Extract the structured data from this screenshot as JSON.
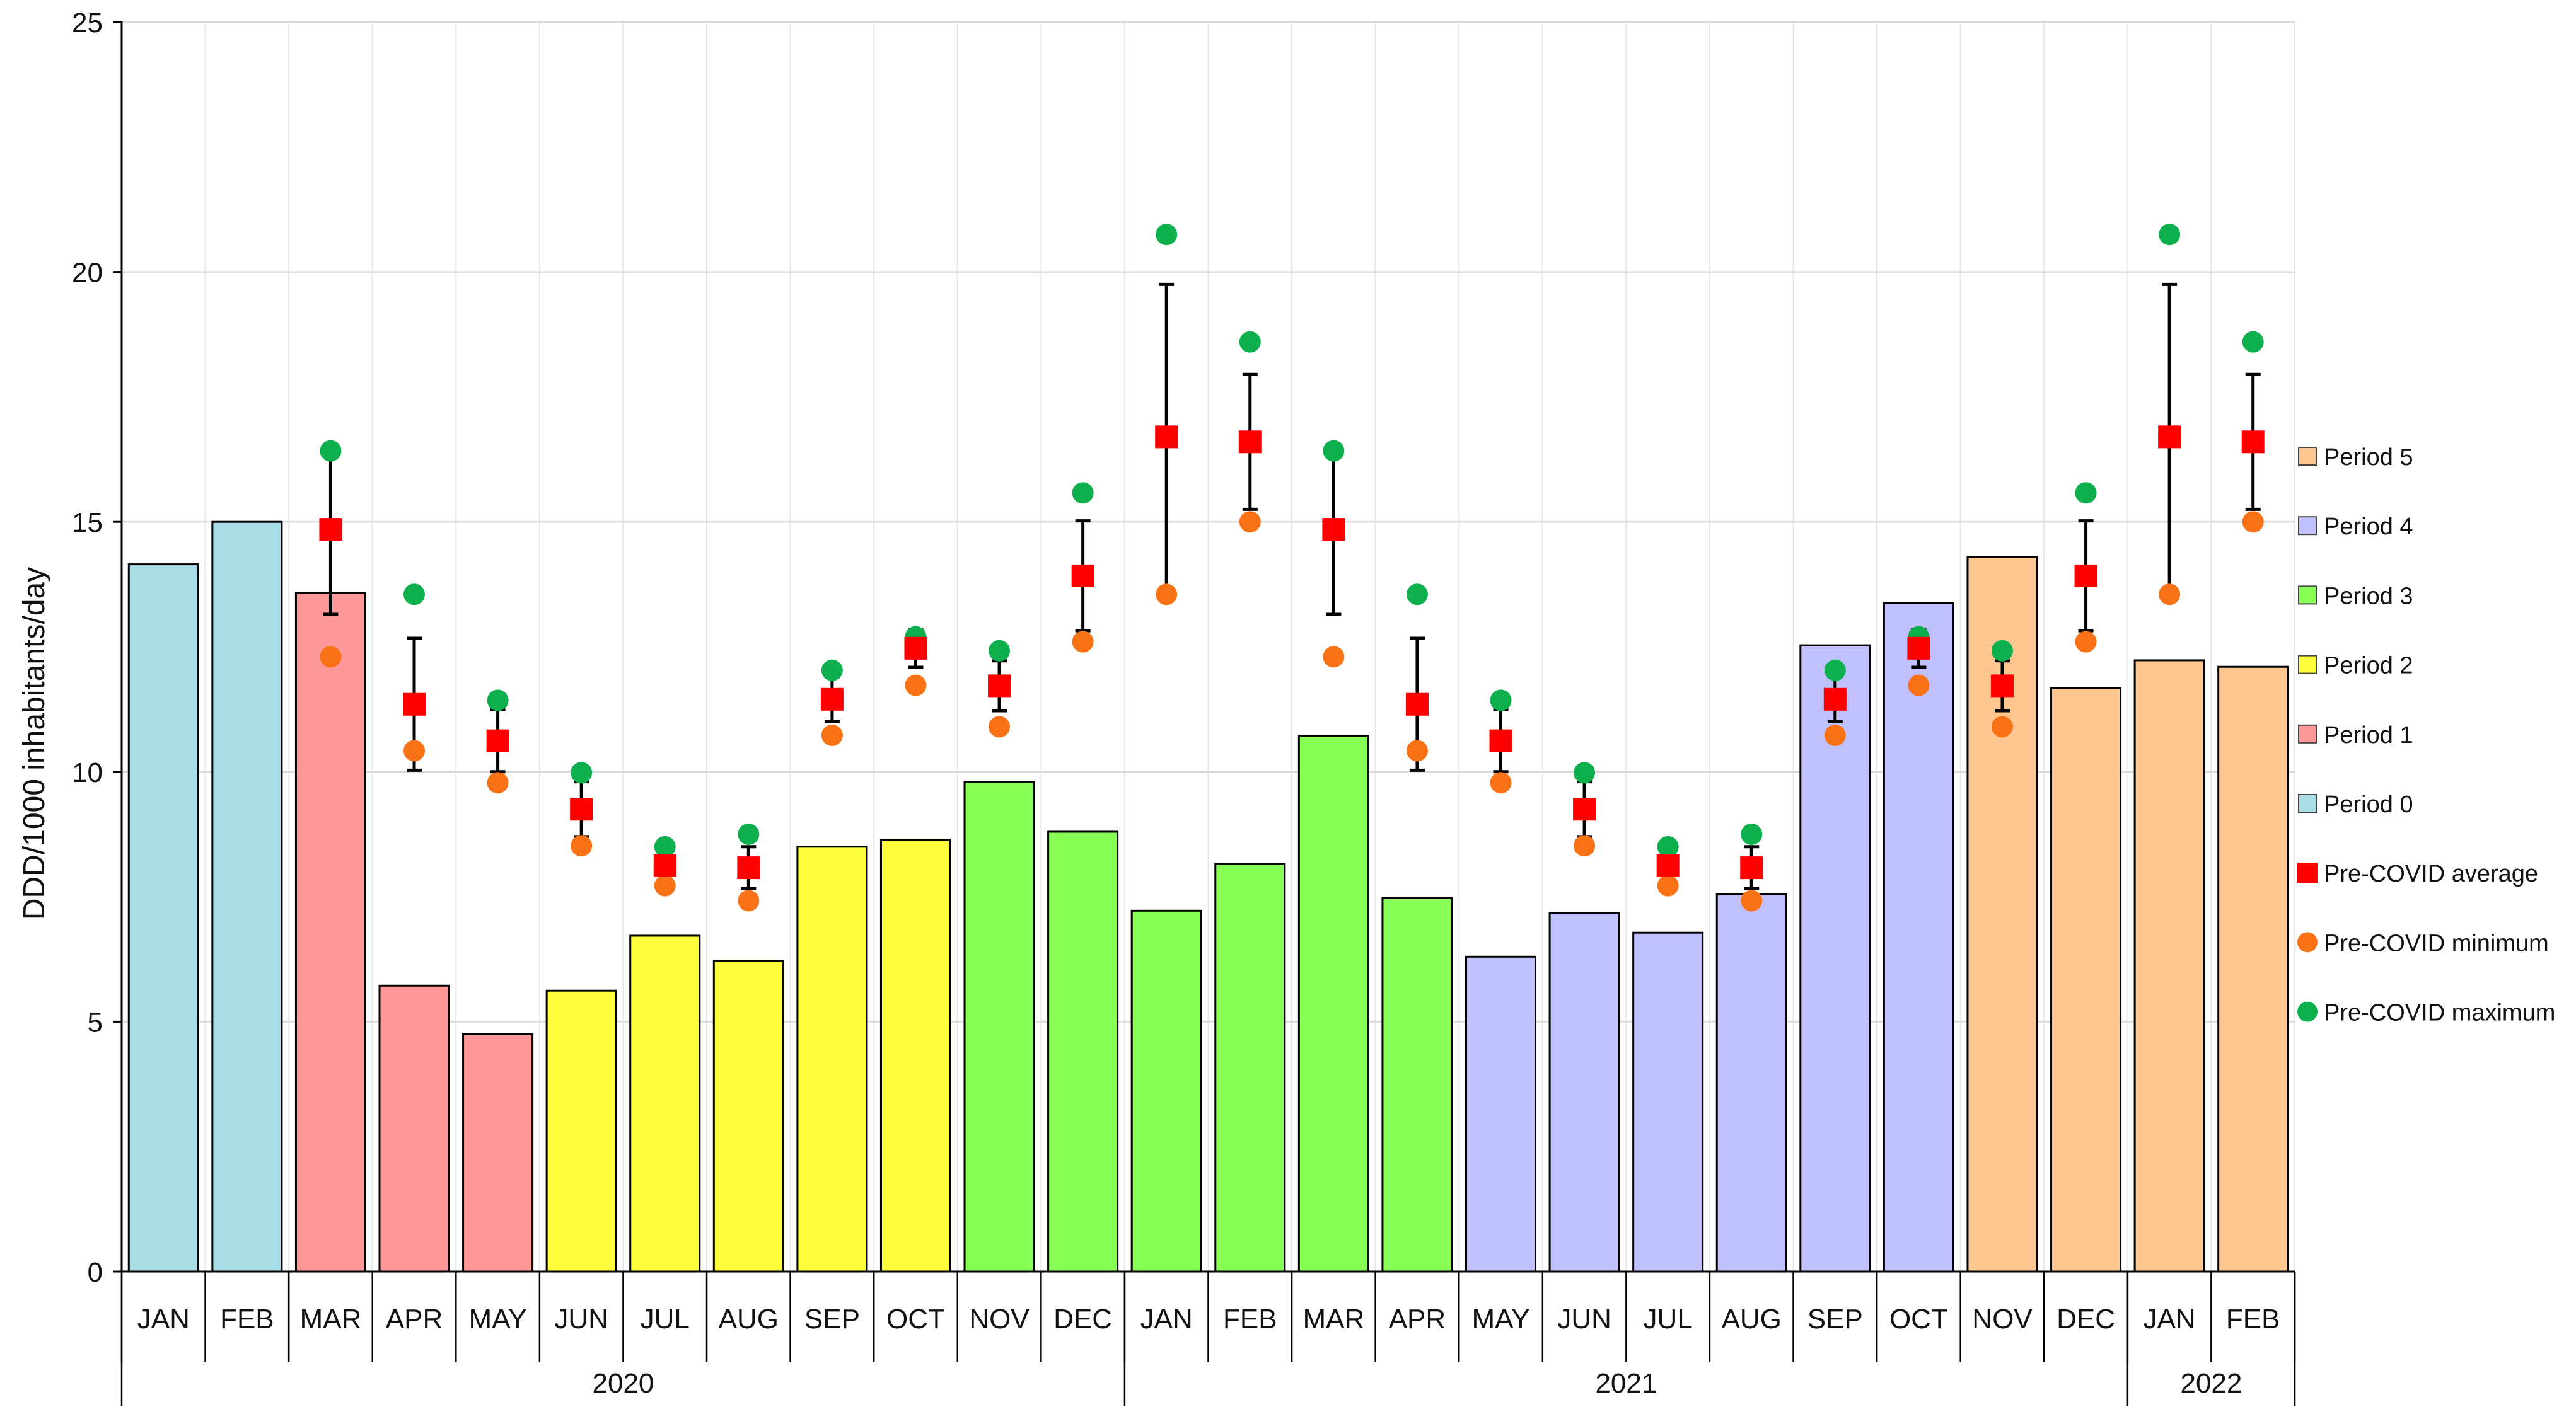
{
  "chart_data": {
    "type": "bar",
    "title": "",
    "ylabel": "DDD/1000 inhabitants/day",
    "xlabel": "",
    "ylim": [
      0,
      25
    ],
    "yticks": [
      0,
      5,
      10,
      15,
      20,
      25
    ],
    "grid": true,
    "legend_position": "right",
    "categories": [
      "JAN",
      "FEB",
      "MAR",
      "APR",
      "MAY",
      "JUN",
      "JUL",
      "AUG",
      "SEP",
      "OCT",
      "NOV",
      "DEC",
      "JAN",
      "FEB",
      "MAR",
      "APR",
      "MAY",
      "JUN",
      "JUL",
      "AUG",
      "SEP",
      "OCT",
      "NOV",
      "DEC",
      "JAN",
      "FEB"
    ],
    "years": [
      {
        "label": "2020",
        "start": 0,
        "end": 11
      },
      {
        "label": "2021",
        "start": 12,
        "end": 23
      },
      {
        "label": "2022",
        "start": 24,
        "end": 25
      }
    ],
    "values": [
      14.15,
      15.0,
      13.58,
      5.72,
      4.75,
      5.62,
      6.72,
      6.22,
      8.5,
      8.63,
      9.8,
      8.8,
      7.22,
      8.16,
      10.72,
      7.47,
      6.3,
      7.18,
      6.78,
      7.55,
      12.53,
      13.38,
      14.3,
      11.68,
      12.23,
      12.1
    ],
    "periods": [
      0,
      0,
      1,
      1,
      1,
      2,
      2,
      2,
      2,
      2,
      3,
      3,
      3,
      3,
      3,
      3,
      4,
      4,
      4,
      4,
      4,
      4,
      5,
      5,
      5,
      5
    ],
    "period_colors": [
      "#a8dde7",
      "#ff9999",
      "#ffff3c",
      "#88ff55",
      "#c0c0ff",
      "#ffc690"
    ],
    "period_labels": [
      "Period 0",
      "Period 1",
      "Period 2",
      "Period 3",
      "Period 4",
      "Period 5"
    ],
    "series": [
      {
        "name": "Pre-COVID average",
        "color": "#ff0000",
        "marker": "square",
        "values": [
          null,
          null,
          14.85,
          11.35,
          10.62,
          9.25,
          8.12,
          8.08,
          11.45,
          12.47,
          11.72,
          13.92,
          16.7,
          16.6,
          14.85,
          11.35,
          10.62,
          9.25,
          8.12,
          8.08,
          11.45,
          12.47,
          11.72,
          13.92,
          16.7,
          16.6
        ]
      },
      {
        "name": "Pre-COVID minimum",
        "color": "#f97316",
        "marker": "circle",
        "values": [
          null,
          null,
          12.3,
          10.42,
          9.78,
          8.52,
          7.72,
          7.42,
          10.73,
          11.73,
          10.9,
          12.6,
          13.55,
          15.0,
          12.3,
          10.42,
          9.78,
          8.52,
          7.72,
          7.42,
          10.73,
          11.73,
          10.9,
          12.6,
          13.55,
          15.0
        ]
      },
      {
        "name": "Pre-COVID maximum",
        "color": "#0eb04e",
        "marker": "circle",
        "values": [
          null,
          null,
          16.42,
          13.55,
          11.43,
          9.98,
          8.5,
          8.75,
          12.03,
          12.7,
          12.42,
          15.58,
          20.75,
          18.6,
          16.42,
          13.55,
          11.43,
          9.98,
          8.5,
          8.75,
          12.03,
          12.7,
          12.42,
          15.58,
          20.75,
          18.6
        ]
      }
    ],
    "error_bar_sd": [
      null,
      null,
      1.7,
      1.32,
      0.62,
      0.55,
      0.3,
      0.42,
      0.45,
      0.38,
      0.5,
      1.1,
      3.05,
      1.35,
      1.7,
      1.32,
      0.62,
      0.55,
      0.3,
      0.42,
      0.45,
      0.38,
      0.5,
      1.1,
      3.05,
      1.35
    ],
    "legend": [
      {
        "label": "Period 5",
        "kind": "swatch",
        "color": "#ffc690"
      },
      {
        "label": "Period 4",
        "kind": "swatch",
        "color": "#c0c0ff"
      },
      {
        "label": "Period 3",
        "kind": "swatch",
        "color": "#88ff55"
      },
      {
        "label": "Period 2",
        "kind": "swatch",
        "color": "#ffff3c"
      },
      {
        "label": "Period 1",
        "kind": "swatch",
        "color": "#ff9999"
      },
      {
        "label": "Period 0",
        "kind": "swatch",
        "color": "#a8dde7"
      },
      {
        "label": "Pre-COVID average",
        "kind": "square",
        "color": "#ff0000"
      },
      {
        "label": "Pre-COVID minimum",
        "kind": "circle",
        "color": "#f97316"
      },
      {
        "label": "Pre-COVID maximum",
        "kind": "circle",
        "color": "#0eb04e"
      }
    ]
  }
}
